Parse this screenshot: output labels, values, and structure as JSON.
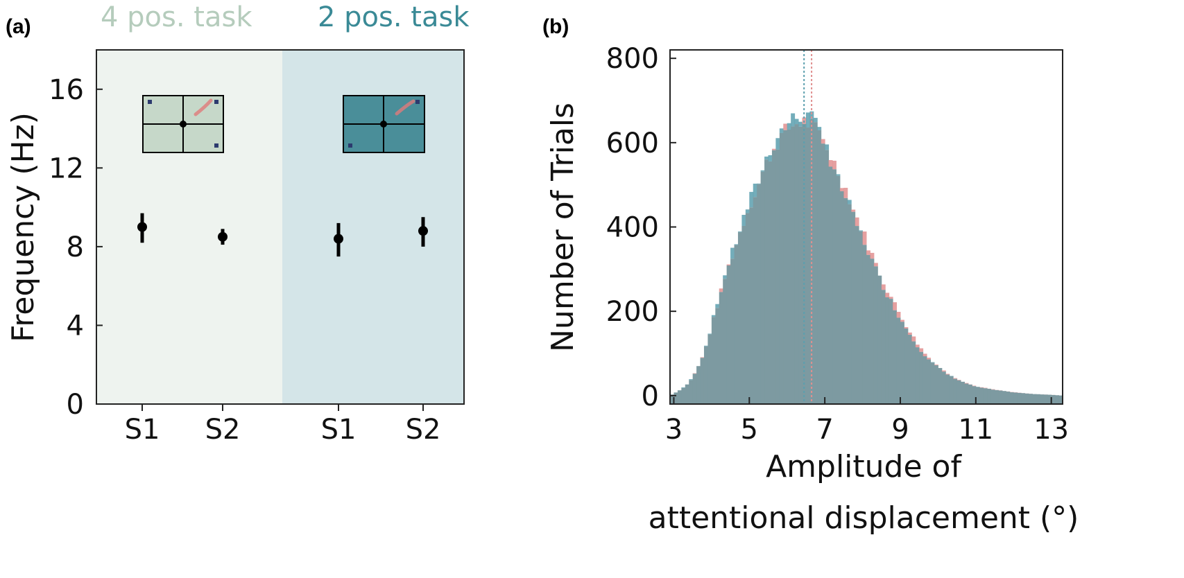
{
  "chart_data": [
    {
      "panel_label": "(a)",
      "type": "scatter",
      "ylabel": "Frequency (Hz)",
      "ylim": [
        0,
        18
      ],
      "yticks": [
        "0",
        "4",
        "8",
        "12",
        "16"
      ],
      "yticks_values": [
        0,
        4,
        8,
        12,
        16
      ],
      "grid": false,
      "groups": [
        {
          "title": "4 pos. task",
          "title_color": "#b5ccbc",
          "background": "#eef3ef",
          "icon_fill": "#c6d8c9",
          "icon_dots": [
            "top-left",
            "top-right",
            "bottom-right"
          ],
          "points": [
            {
              "label": "S1",
              "mean": 9.0,
              "err_low": 8.2,
              "err_high": 9.7
            },
            {
              "label": "S2",
              "mean": 8.5,
              "err_low": 8.1,
              "err_high": 8.9
            }
          ]
        },
        {
          "title": "2 pos. task",
          "title_color": "#3a8a96",
          "background": "#d4e5e8",
          "icon_fill": "#4a8e99",
          "icon_dots": [
            "top-right",
            "bottom-left"
          ],
          "points": [
            {
              "label": "S1",
              "mean": 8.4,
              "err_low": 7.5,
              "err_high": 9.2
            },
            {
              "label": "S2",
              "mean": 8.8,
              "err_low": 8.0,
              "err_high": 9.5
            }
          ]
        }
      ],
      "marker_color": "#000000"
    },
    {
      "panel_label": "(b)",
      "type": "histogram",
      "xlabel_lines": [
        "Amplitude of",
        "attentional displacement (°)"
      ],
      "ylabel": "Number of Trials",
      "xlim": [
        2.9,
        13.3
      ],
      "ylim": [
        -20,
        820
      ],
      "xticks": [
        "3",
        "5",
        "7",
        "9",
        "11",
        "13"
      ],
      "xticks_values": [
        3,
        5,
        7,
        9,
        11,
        13
      ],
      "yticks": [
        "0",
        "200",
        "400",
        "600",
        "800"
      ],
      "yticks_values": [
        0,
        200,
        400,
        600,
        800
      ],
      "grid": false,
      "bin_width": 0.1,
      "bin_start": 2.9,
      "series": [
        {
          "color": "#e08f8f",
          "mean_line": 6.65
        },
        {
          "color": "#5b9fae",
          "mean_line": 6.45
        }
      ],
      "overlap_color": "#7d9aa1",
      "profile": [
        [
          2.9,
          0
        ],
        [
          3.0,
          5
        ],
        [
          3.2,
          15
        ],
        [
          3.4,
          30
        ],
        [
          3.6,
          60
        ],
        [
          3.8,
          100
        ],
        [
          4.0,
          165
        ],
        [
          4.2,
          230
        ],
        [
          4.4,
          295
        ],
        [
          4.6,
          345
        ],
        [
          4.8,
          400
        ],
        [
          5.0,
          450
        ],
        [
          5.2,
          490
        ],
        [
          5.4,
          540
        ],
        [
          5.6,
          580
        ],
        [
          5.8,
          610
        ],
        [
          6.0,
          630
        ],
        [
          6.2,
          645
        ],
        [
          6.4,
          650
        ],
        [
          6.6,
          645
        ],
        [
          6.8,
          625
        ],
        [
          7.0,
          600
        ],
        [
          7.2,
          560
        ],
        [
          7.4,
          520
        ],
        [
          7.6,
          480
        ],
        [
          7.8,
          430
        ],
        [
          8.0,
          390
        ],
        [
          8.2,
          345
        ],
        [
          8.4,
          300
        ],
        [
          8.6,
          260
        ],
        [
          8.8,
          225
        ],
        [
          9.0,
          190
        ],
        [
          9.2,
          160
        ],
        [
          9.4,
          130
        ],
        [
          9.6,
          105
        ],
        [
          9.8,
          85
        ],
        [
          10.0,
          70
        ],
        [
          10.2,
          55
        ],
        [
          10.4,
          45
        ],
        [
          10.6,
          36
        ],
        [
          10.8,
          28
        ],
        [
          11.0,
          22
        ],
        [
          11.5,
          14
        ],
        [
          12.0,
          8
        ],
        [
          12.5,
          4
        ],
        [
          13.0,
          2
        ],
        [
          13.3,
          0
        ]
      ]
    }
  ]
}
